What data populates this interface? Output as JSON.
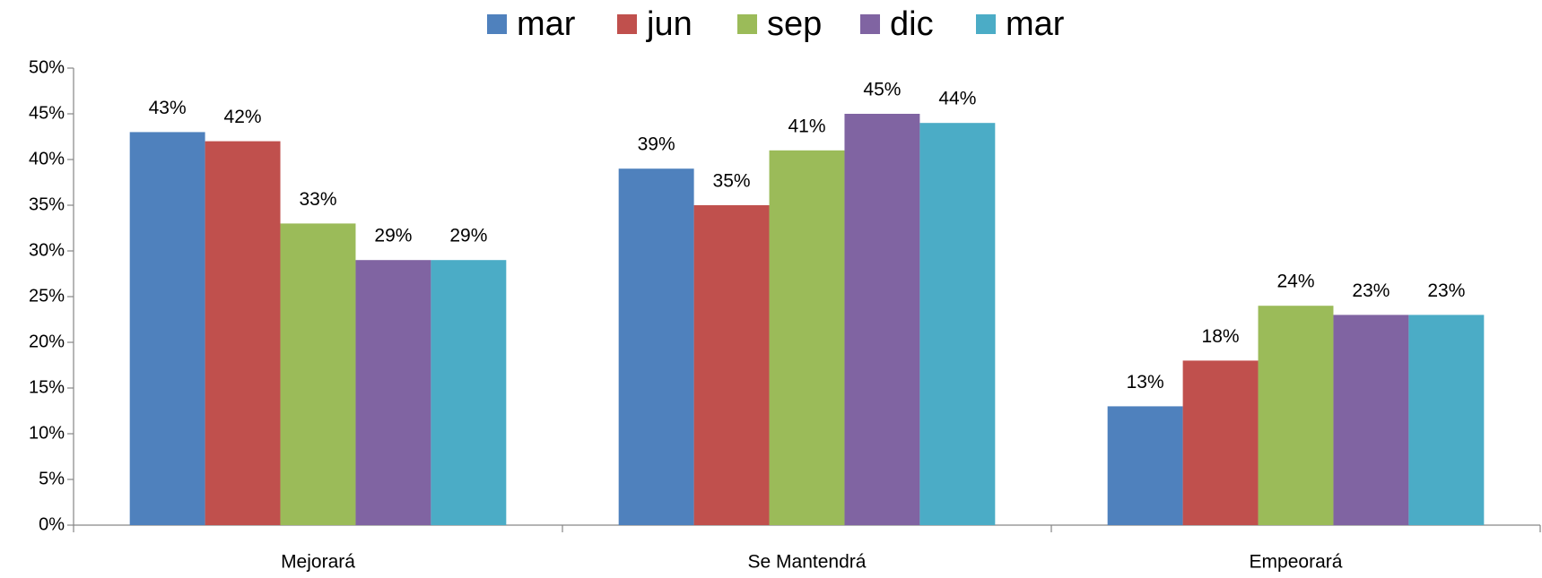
{
  "chart_data": {
    "type": "bar",
    "categories": [
      "Mejorará",
      "Se Mantendrá",
      "Empeorará"
    ],
    "series": [
      {
        "name": "mar",
        "color": "#4f81bd",
        "values": [
          43,
          39,
          13
        ],
        "value_labels": [
          "43%",
          "39%",
          "13%"
        ]
      },
      {
        "name": "jun",
        "color": "#c0504d",
        "values": [
          42,
          35,
          18
        ],
        "value_labels": [
          "42%",
          "35%",
          "18%"
        ]
      },
      {
        "name": "sep",
        "color": "#9bbb59",
        "values": [
          33,
          41,
          24
        ],
        "value_labels": [
          "33%",
          "41%",
          "24%"
        ]
      },
      {
        "name": "dic",
        "color": "#8064a2",
        "values": [
          29,
          45,
          23
        ],
        "value_labels": [
          "29%",
          "45%",
          "23%"
        ]
      },
      {
        "name": "mar",
        "color": "#4bacc6",
        "values": [
          29,
          44,
          23
        ],
        "value_labels": [
          "29%",
          "44%",
          "23%"
        ]
      }
    ],
    "ylim": [
      0,
      50
    ],
    "yticks": [
      {
        "value": 0,
        "label": "0%"
      },
      {
        "value": 5,
        "label": "5%"
      },
      {
        "value": 10,
        "label": "10%"
      },
      {
        "value": 15,
        "label": "15%"
      },
      {
        "value": 20,
        "label": "20%"
      },
      {
        "value": 25,
        "label": "25%"
      },
      {
        "value": 30,
        "label": "30%"
      },
      {
        "value": 35,
        "label": "35%"
      },
      {
        "value": 40,
        "label": "40%"
      },
      {
        "value": 45,
        "label": "45%"
      },
      {
        "value": 50,
        "label": "50%"
      }
    ],
    "legend": "top",
    "grid": false
  }
}
